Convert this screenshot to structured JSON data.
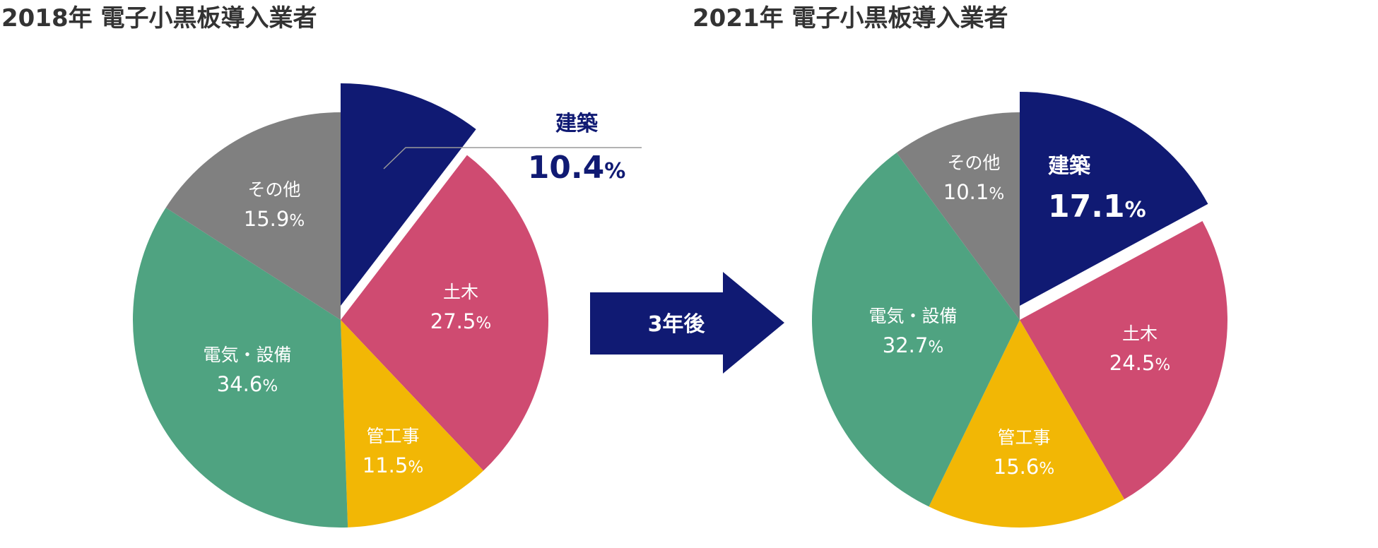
{
  "arrow_label": "3年後",
  "chart_data": [
    {
      "type": "pie",
      "title": "2018年 電子小黒板導入業者",
      "unit": "%",
      "slices": [
        {
          "label": "建築",
          "value": 10.4,
          "value_text": "10.4",
          "color": "#101a73",
          "exploded": true,
          "label_style": "callout"
        },
        {
          "label": "土木",
          "value": 27.5,
          "value_text": "27.5",
          "color": "#cf4b71"
        },
        {
          "label": "管工事",
          "value": 11.5,
          "value_text": "11.5",
          "color": "#f2b705"
        },
        {
          "label": "電気・設備",
          "value": 34.6,
          "value_text": "34.6",
          "color": "#4fa381"
        },
        {
          "label": "その他",
          "value": 15.9,
          "value_text": "15.9",
          "color": "#808080"
        }
      ]
    },
    {
      "type": "pie",
      "title": "2021年 電子小黒板導入業者",
      "unit": "%",
      "slices": [
        {
          "label": "建築",
          "value": 17.1,
          "value_text": "17.1",
          "color": "#101a73",
          "exploded": true,
          "label_style": "inside-bold"
        },
        {
          "label": "土木",
          "value": 24.5,
          "value_text": "24.5",
          "color": "#cf4b71"
        },
        {
          "label": "管工事",
          "value": 15.6,
          "value_text": "15.6",
          "color": "#f2b705"
        },
        {
          "label": "電気・設備",
          "value": 32.7,
          "value_text": "32.7",
          "color": "#4fa381"
        },
        {
          "label": "その他",
          "value": 10.1,
          "value_text": "10.1",
          "color": "#808080"
        }
      ]
    }
  ]
}
